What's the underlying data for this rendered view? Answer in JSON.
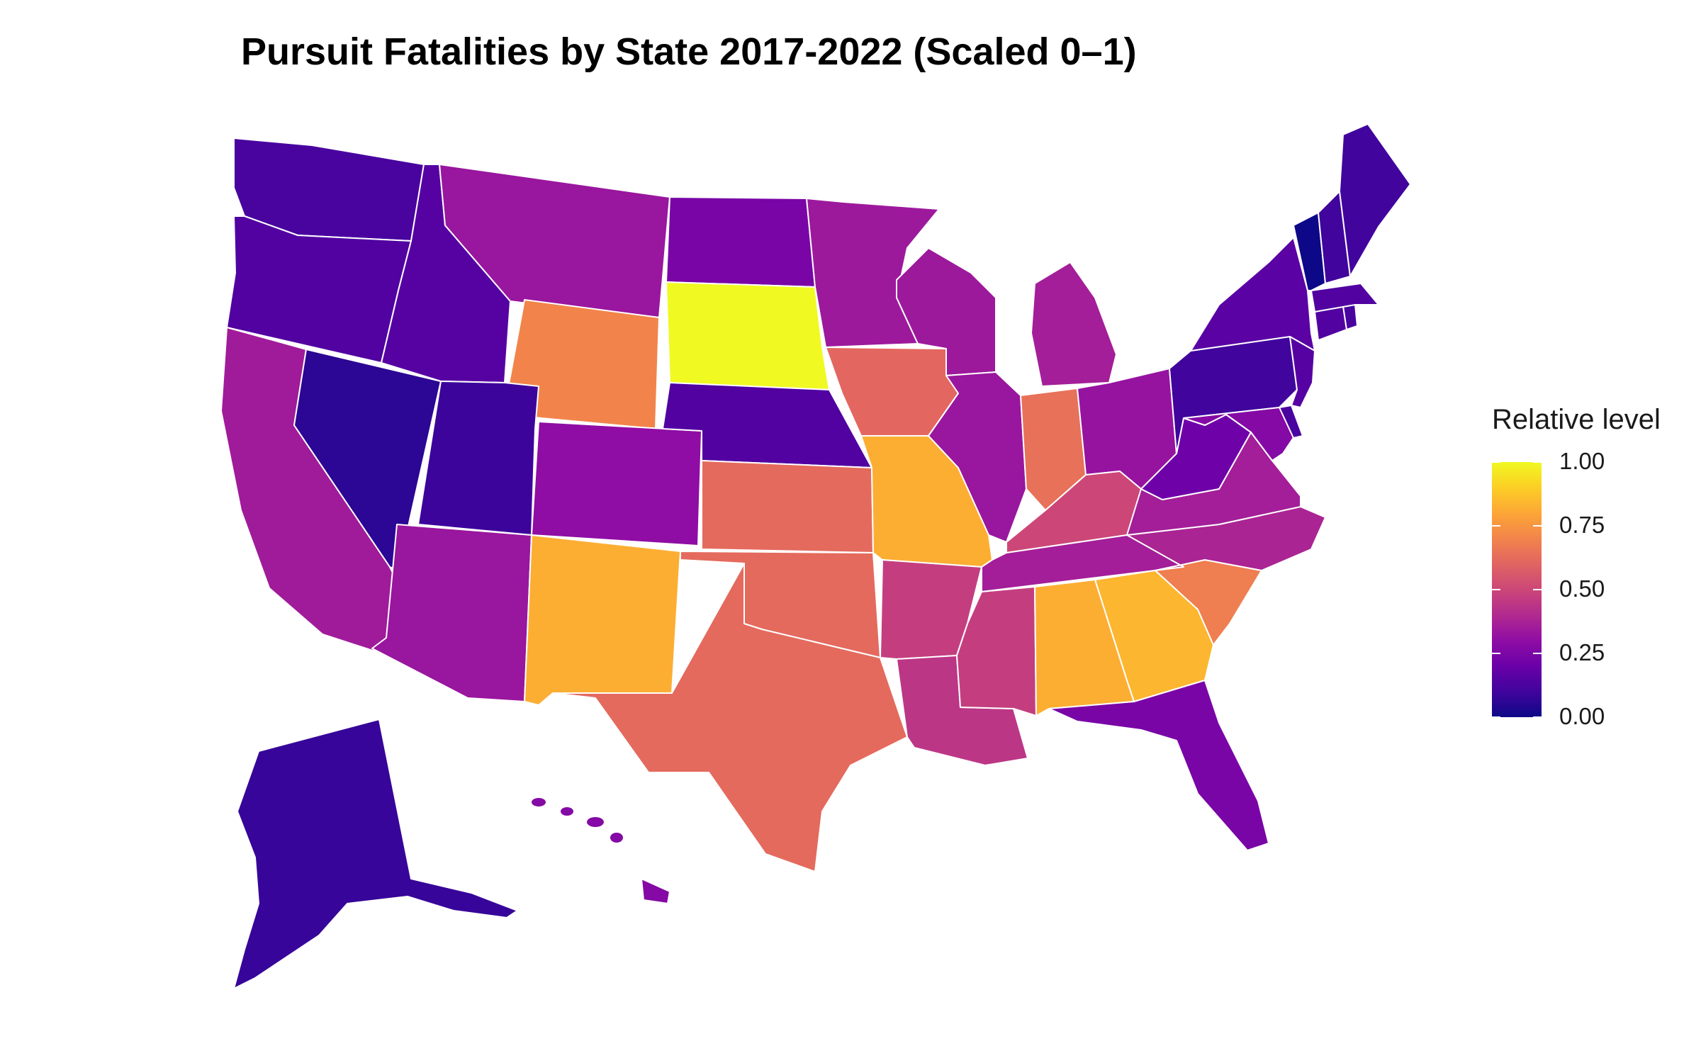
{
  "chart_data": {
    "type": "choropleth",
    "title": "Pursuit Fatalities by State 2017-2022 (Scaled 0–1)",
    "legend": {
      "title": "Relative level",
      "placement": "right",
      "range": [
        0,
        1
      ],
      "ticks": [
        "0.00",
        "0.25",
        "0.50",
        "0.75",
        "1.00"
      ],
      "colormap": "plasma"
    },
    "regions": [
      {
        "name": "Washington",
        "value": 0.12
      },
      {
        "name": "Oregon",
        "value": 0.14
      },
      {
        "name": "California",
        "value": 0.35
      },
      {
        "name": "Nevada",
        "value": 0.06
      },
      {
        "name": "Idaho",
        "value": 0.15
      },
      {
        "name": "Montana",
        "value": 0.33
      },
      {
        "name": "Wyoming",
        "value": 0.7
      },
      {
        "name": "Utah",
        "value": 0.09
      },
      {
        "name": "Arizona",
        "value": 0.33
      },
      {
        "name": "Colorado",
        "value": 0.3
      },
      {
        "name": "New Mexico",
        "value": 0.82
      },
      {
        "name": "North Dakota",
        "value": 0.24
      },
      {
        "name": "South Dakota",
        "value": 1.0
      },
      {
        "name": "Nebraska",
        "value": 0.14
      },
      {
        "name": "Kansas",
        "value": 0.62
      },
      {
        "name": "Oklahoma",
        "value": 0.62
      },
      {
        "name": "Texas",
        "value": 0.62
      },
      {
        "name": "Minnesota",
        "value": 0.34
      },
      {
        "name": "Iowa",
        "value": 0.61
      },
      {
        "name": "Missouri",
        "value": 0.82
      },
      {
        "name": "Arkansas",
        "value": 0.47
      },
      {
        "name": "Louisiana",
        "value": 0.44
      },
      {
        "name": "Wisconsin",
        "value": 0.34
      },
      {
        "name": "Illinois",
        "value": 0.33
      },
      {
        "name": "Michigan",
        "value": 0.36
      },
      {
        "name": "Indiana",
        "value": 0.64
      },
      {
        "name": "Ohio",
        "value": 0.32
      },
      {
        "name": "Kentucky",
        "value": 0.5
      },
      {
        "name": "Tennessee",
        "value": 0.36
      },
      {
        "name": "Mississippi",
        "value": 0.47
      },
      {
        "name": "Alabama",
        "value": 0.82
      },
      {
        "name": "Georgia",
        "value": 0.84
      },
      {
        "name": "Florida",
        "value": 0.24
      },
      {
        "name": "South Carolina",
        "value": 0.68
      },
      {
        "name": "North Carolina",
        "value": 0.38
      },
      {
        "name": "Virginia",
        "value": 0.36
      },
      {
        "name": "West Virginia",
        "value": 0.21
      },
      {
        "name": "Pennsylvania",
        "value": 0.1
      },
      {
        "name": "New York",
        "value": 0.16
      },
      {
        "name": "Maryland",
        "value": 0.27
      },
      {
        "name": "Delaware",
        "value": 0.12
      },
      {
        "name": "New Jersey",
        "value": 0.15
      },
      {
        "name": "Connecticut",
        "value": 0.14
      },
      {
        "name": "Rhode Island",
        "value": 0.12
      },
      {
        "name": "Massachusetts",
        "value": 0.14
      },
      {
        "name": "Vermont",
        "value": 0.0
      },
      {
        "name": "New Hampshire",
        "value": 0.1
      },
      {
        "name": "Maine",
        "value": 0.1
      },
      {
        "name": "Alaska",
        "value": 0.08
      },
      {
        "name": "Hawaii",
        "value": 0.27
      }
    ]
  },
  "colors": {
    "background": "#ffffff",
    "border": "#ffffff",
    "text": "#1a1a1a"
  }
}
